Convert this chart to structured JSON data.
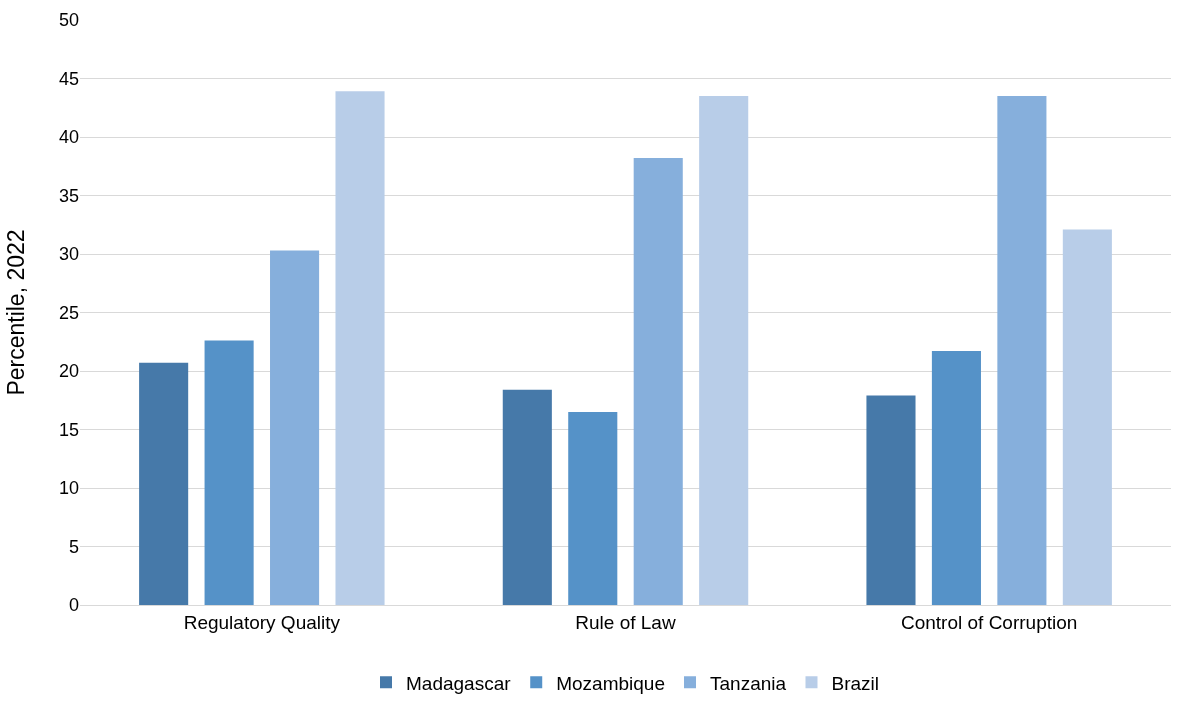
{
  "chart_data": {
    "type": "bar",
    "ylabel": "Percentile, 2022",
    "categories": [
      "Regulatory Quality",
      "Rule of Law",
      "Control of Corruption"
    ],
    "series": [
      {
        "name": "Madagascar",
        "color": "#4679a9",
        "values": [
          20.7,
          18.4,
          17.9
        ]
      },
      {
        "name": "Mozambique",
        "color": "#5592c8",
        "values": [
          22.6,
          16.5,
          21.7
        ]
      },
      {
        "name": "Tanzania",
        "color": "#86afdc",
        "values": [
          30.3,
          38.2,
          43.5
        ]
      },
      {
        "name": "Brazil",
        "color": "#b8cde8",
        "values": [
          43.9,
          43.5,
          32.1
        ]
      }
    ],
    "ylim": [
      0,
      50
    ],
    "yticks": [
      0,
      5,
      10,
      15,
      20,
      25,
      30,
      35,
      40,
      45,
      50
    ],
    "grid": "y",
    "legend": "bottom"
  }
}
